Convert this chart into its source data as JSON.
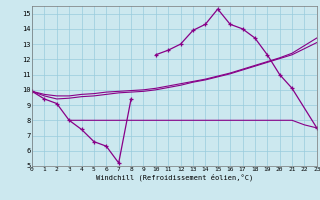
{
  "xlabel": "Windchill (Refroidissement éolien,°C)",
  "bg_color": "#cce8ef",
  "grid_color": "#99ccdd",
  "line_color": "#880088",
  "xmin": 0,
  "xmax": 23,
  "ymin": 5,
  "ymax": 15.5,
  "yticks": [
    5,
    6,
    7,
    8,
    9,
    10,
    11,
    12,
    13,
    14,
    15
  ],
  "xticks": [
    0,
    1,
    2,
    3,
    4,
    5,
    6,
    7,
    8,
    9,
    10,
    11,
    12,
    13,
    14,
    15,
    16,
    17,
    18,
    19,
    20,
    21,
    22,
    23
  ],
  "curve_seg1_x": [
    0,
    1,
    2,
    3,
    4,
    5,
    6,
    7,
    8
  ],
  "curve_seg1_y": [
    9.9,
    9.4,
    9.1,
    8.0,
    7.4,
    6.6,
    6.3,
    5.2,
    9.4
  ],
  "curve_seg2_x": [
    10,
    11,
    12,
    13,
    14,
    15,
    16,
    17,
    18,
    19,
    20,
    21,
    23
  ],
  "curve_seg2_y": [
    12.3,
    12.6,
    13.0,
    13.9,
    14.3,
    15.3,
    14.3,
    14.0,
    13.4,
    12.3,
    11.0,
    10.1,
    7.5
  ],
  "diag1_x": [
    0,
    1,
    2,
    3,
    4,
    5,
    6,
    7,
    8,
    9,
    10,
    11,
    12,
    13,
    14,
    15,
    16,
    17,
    18,
    19,
    20,
    21,
    23
  ],
  "diag1_y": [
    9.9,
    9.7,
    9.6,
    9.6,
    9.7,
    9.75,
    9.85,
    9.9,
    9.95,
    10.0,
    10.1,
    10.25,
    10.4,
    10.55,
    10.7,
    10.9,
    11.1,
    11.35,
    11.6,
    11.85,
    12.1,
    12.4,
    13.4
  ],
  "diag2_x": [
    0,
    1,
    2,
    3,
    4,
    5,
    6,
    7,
    8,
    9,
    10,
    11,
    12,
    13,
    14,
    15,
    16,
    17,
    18,
    19,
    20,
    21,
    23
  ],
  "diag2_y": [
    9.9,
    9.6,
    9.4,
    9.45,
    9.55,
    9.6,
    9.7,
    9.8,
    9.85,
    9.9,
    10.0,
    10.15,
    10.3,
    10.5,
    10.65,
    10.85,
    11.05,
    11.3,
    11.55,
    11.8,
    12.05,
    12.3,
    13.1
  ],
  "flat_x": [
    3,
    4,
    5,
    6,
    7,
    8,
    9,
    10,
    11,
    12,
    13,
    14,
    15,
    16,
    17,
    18,
    19,
    20,
    21,
    22,
    23
  ],
  "flat_y": [
    8.0,
    8.0,
    8.0,
    8.0,
    8.0,
    8.0,
    8.0,
    8.0,
    8.0,
    8.0,
    8.0,
    8.0,
    8.0,
    8.0,
    8.0,
    8.0,
    8.0,
    8.0,
    8.0,
    7.7,
    7.5
  ]
}
